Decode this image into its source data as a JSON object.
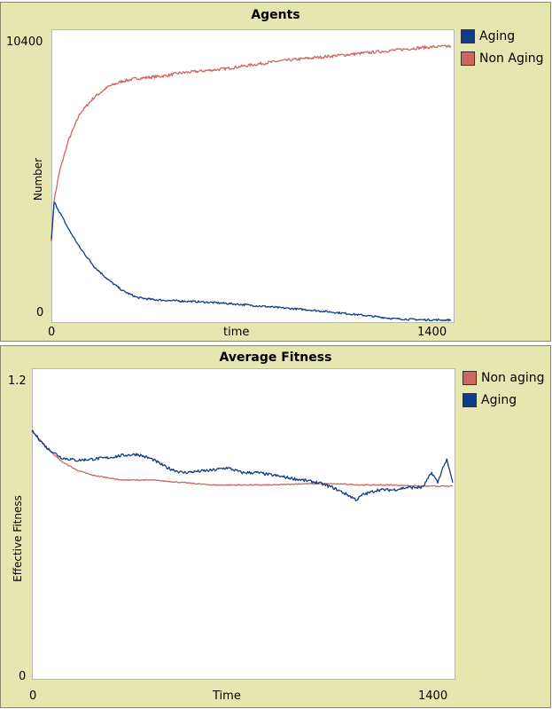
{
  "chart_data": [
    {
      "type": "line",
      "title": "Agents",
      "xlabel": "time",
      "ylabel": "Number",
      "xlim": [
        0,
        1400
      ],
      "ylim": [
        0,
        10400
      ],
      "x_ticks": [
        "0",
        "1400"
      ],
      "y_ticks": [
        "0",
        "10400"
      ],
      "legend": [
        {
          "name": "Aging",
          "color": "#123a8a"
        },
        {
          "name": "Non Aging",
          "color": "#cf6660"
        }
      ],
      "series": [
        {
          "name": "Non Aging",
          "color": "#cf6660",
          "noise": 55,
          "x": [
            0,
            10,
            30,
            60,
            100,
            150,
            200,
            250,
            300,
            350,
            400,
            450,
            500,
            600,
            700,
            800,
            900,
            1000,
            1100,
            1200,
            1300,
            1400
          ],
          "y": [
            3000,
            4500,
            5600,
            6700,
            7700,
            8300,
            8700,
            8900,
            9000,
            9050,
            9100,
            9200,
            9250,
            9350,
            9500,
            9650,
            9750,
            9850,
            9950,
            10050,
            10150,
            10200
          ]
        },
        {
          "name": "Aging",
          "color": "#123a8a",
          "noise": 35,
          "x": [
            0,
            10,
            30,
            60,
            100,
            150,
            200,
            250,
            300,
            350,
            400,
            450,
            500,
            600,
            700,
            800,
            900,
            1000,
            1100,
            1200,
            1300,
            1400
          ],
          "y": [
            3000,
            4400,
            4000,
            3400,
            2700,
            2000,
            1500,
            1100,
            850,
            780,
            740,
            720,
            700,
            640,
            560,
            470,
            390,
            290,
            180,
            60,
            20,
            10
          ]
        }
      ]
    },
    {
      "type": "line",
      "title": "Average Fitness",
      "xlabel": "Time",
      "ylabel": "Effective Fitness",
      "xlim": [
        0,
        1400
      ],
      "ylim": [
        0,
        1.2
      ],
      "x_ticks": [
        "0",
        "1400"
      ],
      "y_ticks": [
        "0",
        "1.2"
      ],
      "legend": [
        {
          "name": "Non aging",
          "color": "#cf6660"
        },
        {
          "name": "Aging",
          "color": "#123a8a"
        }
      ],
      "series": [
        {
          "name": "Non aging",
          "color": "#cf6660",
          "noise": 0.002,
          "x": [
            0,
            50,
            100,
            150,
            200,
            250,
            300,
            400,
            500,
            600,
            700,
            800,
            900,
            1000,
            1100,
            1200,
            1300,
            1400
          ],
          "y": [
            1.0,
            0.93,
            0.875,
            0.84,
            0.82,
            0.81,
            0.8,
            0.8,
            0.79,
            0.78,
            0.78,
            0.78,
            0.785,
            0.785,
            0.78,
            0.78,
            0.775,
            0.775
          ]
        },
        {
          "name": "Aging",
          "color": "#123a8a",
          "noise": 0.006,
          "x": [
            0,
            50,
            100,
            150,
            200,
            250,
            300,
            350,
            400,
            450,
            500,
            550,
            600,
            650,
            700,
            750,
            800,
            850,
            900,
            950,
            1000,
            1050,
            1080,
            1100,
            1150,
            1200,
            1250,
            1300,
            1330,
            1350,
            1370,
            1380,
            1400
          ],
          "y": [
            1.0,
            0.93,
            0.89,
            0.88,
            0.885,
            0.89,
            0.9,
            0.905,
            0.885,
            0.85,
            0.83,
            0.835,
            0.84,
            0.85,
            0.83,
            0.83,
            0.82,
            0.81,
            0.8,
            0.79,
            0.77,
            0.74,
            0.72,
            0.74,
            0.76,
            0.76,
            0.77,
            0.77,
            0.83,
            0.79,
            0.86,
            0.88,
            0.79
          ]
        }
      ]
    }
  ]
}
